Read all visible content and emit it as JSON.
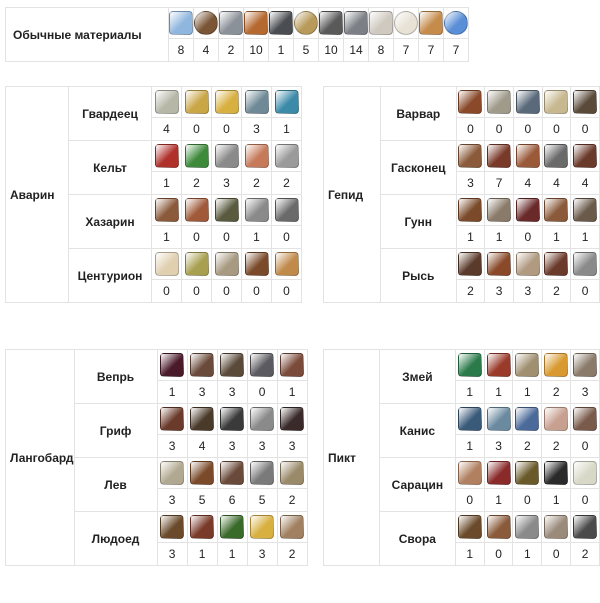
{
  "common": {
    "label": "Обычные материалы",
    "items": [
      {
        "icon": "blue-crystal-icon",
        "color": "#8fb6de",
        "count": "8"
      },
      {
        "icon": "rope-coil-icon",
        "color": "#7a5636",
        "count": "4"
      },
      {
        "icon": "stone-block-icon",
        "color": "#8b9198",
        "count": "2"
      },
      {
        "icon": "leather-hide-icon",
        "color": "#b5682f",
        "count": "10"
      },
      {
        "icon": "dark-ore-icon",
        "color": "#4a4d52",
        "count": "1"
      },
      {
        "icon": "feather-icon",
        "color": "#b89a5a",
        "count": "5"
      },
      {
        "icon": "weight-icon",
        "color": "#5a5a5a",
        "count": "10"
      },
      {
        "icon": "iron-ore-icon",
        "color": "#7c7f85",
        "count": "14"
      },
      {
        "icon": "cloth-rag-icon",
        "color": "#cfc9bf",
        "count": "8"
      },
      {
        "icon": "cotton-icon",
        "color": "#e8e2d6",
        "count": "7"
      },
      {
        "icon": "canvas-frame-icon",
        "color": "#c58b4a",
        "count": "7"
      },
      {
        "icon": "potion-flask-icon",
        "color": "#5a8fd8",
        "count": "7"
      }
    ]
  },
  "races": [
    {
      "id": "t-avarin",
      "name": "Аварин",
      "subs": [
        {
          "name": "Гвардеец",
          "items": [
            {
              "icon": "cloth-scroll-icon",
              "color": "#b7b7a8",
              "count": "4"
            },
            {
              "icon": "gold-nuggets-icon",
              "color": "#c9a646",
              "count": "0"
            },
            {
              "icon": "gold-bell-icon",
              "color": "#d8b040",
              "count": "0"
            },
            {
              "icon": "steel-plate-icon",
              "color": "#6f8a96",
              "count": "3"
            },
            {
              "icon": "gold-lamp-icon",
              "color": "#3b8aa8",
              "count": "1"
            }
          ]
        },
        {
          "name": "Кельт",
          "items": [
            {
              "icon": "red-jar-icon",
              "color": "#b0302a",
              "count": "1"
            },
            {
              "icon": "clover-icon",
              "color": "#3c8a3a",
              "count": "2"
            },
            {
              "icon": "horn-icon",
              "color": "#8a8a8a",
              "count": "3"
            },
            {
              "icon": "copper-ingot-icon",
              "color": "#c67a5a",
              "count": "2"
            },
            {
              "icon": "chainmail-glove-icon",
              "color": "#9a9a9a",
              "count": "2"
            }
          ]
        },
        {
          "name": "Хазарин",
          "items": [
            {
              "icon": "arrows-icon",
              "color": "#8a5a3a",
              "count": "1"
            },
            {
              "icon": "coiled-rope-icon",
              "color": "#a05a3a",
              "count": "0"
            },
            {
              "icon": "green-cloth-icon",
              "color": "#5a5a3e",
              "count": "0"
            },
            {
              "icon": "chain-links-icon",
              "color": "#8a8a8a",
              "count": "1"
            },
            {
              "icon": "scale-armor-icon",
              "color": "#6a6a6a",
              "count": "0"
            }
          ]
        },
        {
          "name": "Центурион",
          "items": [
            {
              "icon": "feathers-icon",
              "color": "#e0d0b0",
              "count": "0"
            },
            {
              "icon": "laurel-leaf-icon",
              "color": "#a8a050",
              "count": "0"
            },
            {
              "icon": "sack-icon",
              "color": "#a89a80",
              "count": "0"
            },
            {
              "icon": "fur-pelt-icon",
              "color": "#7a4a2a",
              "count": "0"
            },
            {
              "icon": "bronze-bars-icon",
              "color": "#c08a4a",
              "count": "0"
            }
          ]
        }
      ]
    },
    {
      "id": "t-gepid",
      "name": "Гепид",
      "subs": [
        {
          "name": "Варвар",
          "items": [
            {
              "icon": "curved-horn-icon",
              "color": "#8a4a2a",
              "count": "0"
            },
            {
              "icon": "rock-fragment-icon",
              "color": "#a09a8a",
              "count": "0"
            },
            {
              "icon": "chain-icon",
              "color": "#5a6a7a",
              "count": "0"
            },
            {
              "icon": "parchment-scroll-icon",
              "color": "#c8b890",
              "count": "0"
            },
            {
              "icon": "mace-icon",
              "color": "#5a4a3a",
              "count": "0"
            }
          ]
        },
        {
          "name": "Гасконец",
          "items": [
            {
              "icon": "needle-icon",
              "color": "#8a5a3a",
              "count": "3"
            },
            {
              "icon": "leather-strip-icon",
              "color": "#7a3a2a",
              "count": "7"
            },
            {
              "icon": "boot-sole-icon",
              "color": "#9a5a3a",
              "count": "4"
            },
            {
              "icon": "steel-shield-icon",
              "color": "#6a6a6a",
              "count": "4"
            },
            {
              "icon": "leather-roll-icon",
              "color": "#6a3a2a",
              "count": "4"
            }
          ]
        },
        {
          "name": "Гунн",
          "items": [
            {
              "icon": "leather-vest-icon",
              "color": "#7a4a2a",
              "count": "1"
            },
            {
              "icon": "bone-fan-icon",
              "color": "#8a7a6a",
              "count": "1"
            },
            {
              "icon": "red-wrap-icon",
              "color": "#6a2a2a",
              "count": "0"
            },
            {
              "icon": "hide-bundle-icon",
              "color": "#8a5a3a",
              "count": "1"
            },
            {
              "icon": "claws-icon",
              "color": "#6a5a4a",
              "count": "1"
            }
          ]
        },
        {
          "name": "Рысь",
          "items": [
            {
              "icon": "dark-stake-icon",
              "color": "#5a3a2a",
              "count": "2"
            },
            {
              "icon": "tied-bundle-icon",
              "color": "#8a4a2a",
              "count": "3"
            },
            {
              "icon": "stone-slab-icon",
              "color": "#b09a80",
              "count": "3"
            },
            {
              "icon": "brown-fur-icon",
              "color": "#6a3a2a",
              "count": "2"
            },
            {
              "icon": "gray-feather-icon",
              "color": "#8a8a8a",
              "count": "0"
            }
          ]
        }
      ]
    },
    {
      "id": "t-langobard",
      "name": "Лангобард",
      "subs": [
        {
          "name": "Вепрь",
          "items": [
            {
              "icon": "dark-flask-icon",
              "color": "#4a1a2a",
              "count": "1"
            },
            {
              "icon": "wooden-plank-icon",
              "color": "#6a4a3a",
              "count": "3"
            },
            {
              "icon": "fur-tuft-icon",
              "color": "#5a4a3a",
              "count": "3"
            },
            {
              "icon": "slate-tile-icon",
              "color": "#5a5a60",
              "count": "0"
            },
            {
              "icon": "leather-piece-icon",
              "color": "#7a4a3a",
              "count": "1"
            }
          ]
        },
        {
          "name": "Гриф",
          "items": [
            {
              "icon": "wood-log-icon",
              "color": "#6a3a2a",
              "count": "3"
            },
            {
              "icon": "cord-icon",
              "color": "#4a3a2a",
              "count": "4"
            },
            {
              "icon": "whip-icon",
              "color": "#3a3a3a",
              "count": "3"
            },
            {
              "icon": "chainmail-icon",
              "color": "#8a8a8a",
              "count": "3"
            },
            {
              "icon": "black-feather-icon",
              "color": "#3a2a2a",
              "count": "3"
            }
          ]
        },
        {
          "name": "Лев",
          "items": [
            {
              "icon": "sand-pile-icon",
              "color": "#b0a890",
              "count": "3"
            },
            {
              "icon": "brown-leather-icon",
              "color": "#7a4a2a",
              "count": "5"
            },
            {
              "icon": "hide-stack-icon",
              "color": "#6a4a3a",
              "count": "6"
            },
            {
              "icon": "gray-stone-icon",
              "color": "#7a7a7a",
              "count": "5"
            },
            {
              "icon": "claw-icon",
              "color": "#9a8a6a",
              "count": "2"
            }
          ]
        },
        {
          "name": "Людоед",
          "items": [
            {
              "icon": "reeds-bundle-icon",
              "color": "#6a4a2a",
              "count": "3"
            },
            {
              "icon": "wood-bundle-icon",
              "color": "#7a3a2a",
              "count": "1"
            },
            {
              "icon": "moss-icon",
              "color": "#3a6a2a",
              "count": "1"
            },
            {
              "icon": "yellow-potion-icon",
              "color": "#d8b040",
              "count": "3"
            },
            {
              "icon": "bone-bundle-icon",
              "color": "#a08060",
              "count": "2"
            }
          ]
        }
      ]
    },
    {
      "id": "t-pikt",
      "name": "Пикт",
      "subs": [
        {
          "name": "Змей",
          "items": [
            {
              "icon": "green-gem-icon",
              "color": "#2a7a4a",
              "count": "1"
            },
            {
              "icon": "red-claw-icon",
              "color": "#9a3a2a",
              "count": "1"
            },
            {
              "icon": "stone-tablet-icon",
              "color": "#a09070",
              "count": "1"
            },
            {
              "icon": "amber-flask-icon",
              "color": "#d89a30",
              "count": "2"
            },
            {
              "icon": "fang-icon",
              "color": "#8a7a6a",
              "count": "3"
            }
          ]
        },
        {
          "name": "Канис",
          "items": [
            {
              "icon": "blue-feather-icon",
              "color": "#3a5a7a",
              "count": "1"
            },
            {
              "icon": "teeth-icon",
              "color": "#6a8aa0",
              "count": "3"
            },
            {
              "icon": "blue-bottle-icon",
              "color": "#4a6a9a",
              "count": "2"
            },
            {
              "icon": "bone-icon",
              "color": "#c8a090",
              "count": "2"
            },
            {
              "icon": "arrow-bundle-icon",
              "color": "#7a5a4a",
              "count": "0"
            }
          ]
        },
        {
          "name": "Сарацин",
          "items": [
            {
              "icon": "ring-rope-icon",
              "color": "#b08060",
              "count": "0"
            },
            {
              "icon": "red-vial-icon",
              "color": "#8a2a2a",
              "count": "1"
            },
            {
              "icon": "leather-bag-icon",
              "color": "#6a5a2a",
              "count": "0"
            },
            {
              "icon": "black-claw-icon",
              "color": "#2a2a2a",
              "count": "1"
            },
            {
              "icon": "eggs-icon",
              "color": "#d8d8c8",
              "count": "0"
            }
          ]
        },
        {
          "name": "Свора",
          "items": [
            {
              "icon": "wood-crate-icon",
              "color": "#6a4a2a",
              "count": "1"
            },
            {
              "icon": "hide-scrap-icon",
              "color": "#8a5a3a",
              "count": "0"
            },
            {
              "icon": "silver-blades-icon",
              "color": "#8a8a8a",
              "count": "1"
            },
            {
              "icon": "horn-tusk-icon",
              "color": "#9a8a7a",
              "count": "0"
            },
            {
              "icon": "iron-chain-icon",
              "color": "#4a4a4a",
              "count": "2"
            }
          ]
        }
      ]
    }
  ]
}
